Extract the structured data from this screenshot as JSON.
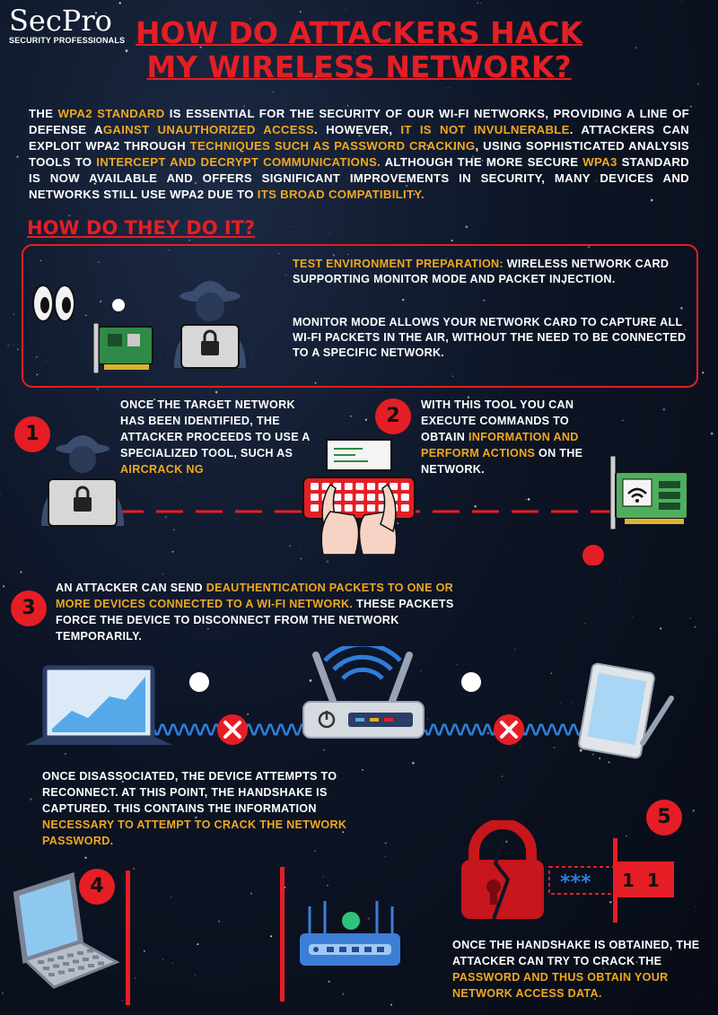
{
  "logo": {
    "mark": "SecPro",
    "tagline": "SECURITY PROFESSIONALS"
  },
  "title": {
    "line1": "HOW DO ATTACKERS HACK",
    "line2": "MY WIRELESS NETWORK?"
  },
  "intro": {
    "p1": "THE ",
    "h1": "WPA2 STANDARD",
    "p2": " IS ESSENTIAL FOR THE SECURITY OF OUR WI-FI NETWORKS, PROVIDING A LINE OF DEFENSE A",
    "h2": "GAINST UNAUTHORIZED ACCESS",
    "p3": ". HOWEVER, ",
    "h3": "IT IS NOT INVULNERABLE",
    "p4": ". ATTACKERS CAN EXPLOIT WPA2 THROUGH ",
    "h4": "TECHNIQUES SUCH AS PASSWORD CRACKING",
    "p5": ", USING SOPHISTICATED ANALYSIS TOOLS TO ",
    "h5": "INTERCEPT AND DECRYPT COMMUNICATIONS.",
    "p6": " ALTHOUGH THE MORE SECURE ",
    "h6": "WPA3",
    "p7": " STANDARD IS NOW AVAILABLE AND OFFERS SIGNIFICANT IMPROVEMENTS IN SECURITY, MANY DEVICES AND NETWORKS STILL USE WPA2 DUE TO ",
    "h7": "ITS BROAD COMPATIBILITY.",
    "p8": ""
  },
  "how_heading": "HOW DO THEY DO IT?",
  "prep": {
    "hl": "TEST ENVIRONMENT PREPARATION:",
    "p1": " WIRELESS NETWORK CARD SUPPORTING MONITOR MODE AND PACKET INJECTION.",
    "p2": "MONITOR MODE ALLOWS YOUR NETWORK CARD TO CAPTURE ALL WI-FI PACKETS IN THE AIR, WITHOUT THE NEED TO BE CONNECTED TO A SPECIFIC NETWORK."
  },
  "steps": {
    "n1": "1",
    "n2": "2",
    "n3": "3",
    "n4": "4",
    "n5": "5",
    "s1_text": "ONCE THE TARGET NETWORK HAS BEEN IDENTIFIED, THE ATTACKER PROCEEDS TO USE A SPECIALIZED TOOL, SUCH AS ",
    "s1_hl": "AIRCRACK NG",
    "s2_text": "WITH THIS TOOL YOU CAN EXECUTE COMMANDS TO OBTAIN ",
    "s2_hl": "INFORMATION AND PERFORM ACTIONS",
    "s2_end": " ON THE NETWORK.",
    "s3_text": "AN ATTACKER CAN SEND ",
    "s3_hl": "DEAUTHENTICATION PACKETS TO ONE OR MORE DEVICES CONNECTED TO A WI-FI NETWORK.",
    "s3_end": " THESE PACKETS FORCE THE DEVICE TO DISCONNECT FROM THE NETWORK TEMPORARILY.",
    "s4_text": "ONCE DISASSOCIATED, THE DEVICE ATTEMPTS TO RECONNECT. AT THIS POINT, THE HANDSHAKE IS CAPTURED. THIS CONTAINS THE INFORMATION ",
    "s4_hl": "NECESSARY TO ATTEMPT TO CRACK THE NETWORK PASSWORD.",
    "s5_text": "ONCE THE HANDSHAKE IS OBTAINED, THE ATTACKER CAN TRY TO CRACK THE ",
    "s5_hl": "PASSWORD AND THUS OBTAIN YOUR NETWORK ACCESS DATA."
  },
  "password_panel": {
    "mask": "***",
    "digits": "1  1"
  },
  "colors": {
    "accent_red": "#e51e25",
    "highlight": "#f0a81e",
    "background": "#0d1526"
  }
}
